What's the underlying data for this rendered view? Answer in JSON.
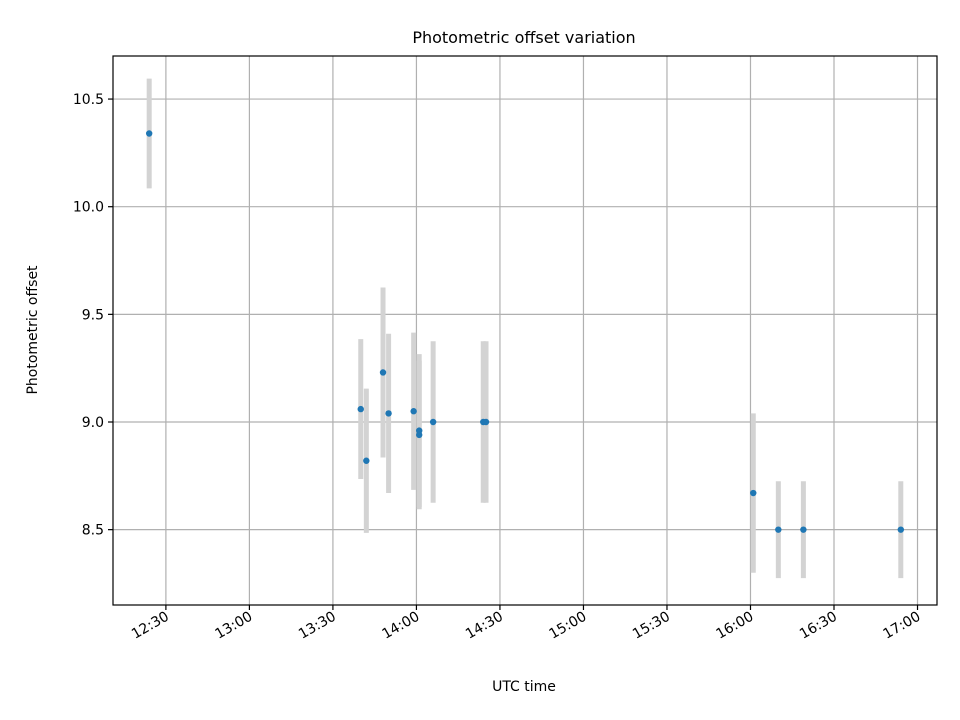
{
  "chart_data": {
    "type": "scatter",
    "title": "Photometric offset variation",
    "xlabel": "UTC time",
    "ylabel": "Photometric offset",
    "x_axis_type": "time",
    "xlim": [
      "12:11",
      "17:07"
    ],
    "ylim": [
      8.15,
      10.7
    ],
    "x_ticks": [
      "12:30",
      "13:00",
      "13:30",
      "14:00",
      "14:30",
      "15:00",
      "15:30",
      "16:00",
      "16:30",
      "17:00"
    ],
    "y_ticks": [
      "8.5",
      "9.0",
      "9.5",
      "10.0",
      "10.5"
    ],
    "grid": true,
    "legend": "none",
    "colors": {
      "point": "#1f77b4",
      "errorbar": "#d3d3d3",
      "grid": "#b0b0b0"
    },
    "points": [
      {
        "x": "12:24",
        "y": 10.34,
        "err": 0.255
      },
      {
        "x": "13:40",
        "y": 9.06,
        "err": 0.325
      },
      {
        "x": "13:42",
        "y": 8.82,
        "err": 0.335
      },
      {
        "x": "13:48",
        "y": 9.23,
        "err": 0.395
      },
      {
        "x": "13:50",
        "y": 9.04,
        "err": 0.37
      },
      {
        "x": "13:59",
        "y": 9.05,
        "err": 0.365
      },
      {
        "x": "14:01",
        "y": 8.96,
        "err": 0.355
      },
      {
        "x": "14:01",
        "y": 8.94,
        "err": 0.345
      },
      {
        "x": "14:06",
        "y": 9.0,
        "err": 0.375
      },
      {
        "x": "14:24",
        "y": 9.0,
        "err": 0.375
      },
      {
        "x": "14:25",
        "y": 9.0,
        "err": 0.375
      },
      {
        "x": "16:01",
        "y": 8.67,
        "err": 0.37
      },
      {
        "x": "16:10",
        "y": 8.5,
        "err": 0.225
      },
      {
        "x": "16:19",
        "y": 8.5,
        "err": 0.225
      },
      {
        "x": "16:54",
        "y": 8.5,
        "err": 0.225
      }
    ]
  }
}
